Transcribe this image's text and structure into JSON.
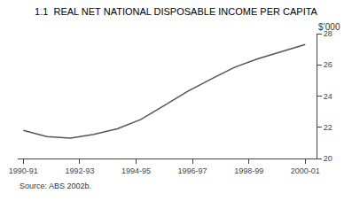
{
  "chart_data": {
    "type": "line",
    "title": "1.1  REAL NET NATIONAL DISPOSABLE INCOME PER CAPITA",
    "ylabel": "$’000",
    "annotations": [
      "Source: ABS 2002b."
    ],
    "x": [
      0,
      0.83,
      1.67,
      2.5,
      3.33,
      4.17,
      5.0,
      5.83,
      6.67,
      7.5,
      8.33,
      9.17,
      9.67,
      10
    ],
    "values": [
      21.8,
      21.4,
      21.3,
      21.55,
      21.9,
      22.5,
      23.4,
      24.3,
      25.1,
      25.85,
      26.4,
      26.85,
      27.1,
      27.3
    ],
    "color": "#555555",
    "xlim": [
      -0.2,
      10.4
    ],
    "xticks": [
      {
        "value": 0,
        "label": "1990-91"
      },
      {
        "value": 2,
        "label": "1992-93"
      },
      {
        "value": 4,
        "label": "1994-95"
      },
      {
        "value": 6,
        "label": "1996-97"
      },
      {
        "value": 8,
        "label": "1998-99"
      },
      {
        "value": 10,
        "label": "2000-01"
      }
    ],
    "ylim": [
      20,
      28
    ],
    "yticks": [
      20,
      22,
      24,
      26,
      28
    ],
    "grid": false
  }
}
